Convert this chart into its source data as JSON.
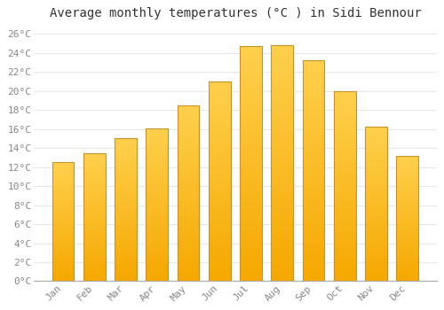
{
  "months": [
    "Jan",
    "Feb",
    "Mar",
    "Apr",
    "May",
    "Jun",
    "Jul",
    "Aug",
    "Sep",
    "Oct",
    "Nov",
    "Dec"
  ],
  "temperatures": [
    12.5,
    13.5,
    15.0,
    16.1,
    18.5,
    21.0,
    24.7,
    24.8,
    23.2,
    20.0,
    16.3,
    13.2
  ],
  "bar_color_top": "#FFD04D",
  "bar_color_bottom": "#F5A800",
  "bar_edge_color": "#C8922A",
  "title": "Average monthly temperatures (°C ) in Sidi Bennour",
  "ylim": [
    0,
    27
  ],
  "yticks": [
    0,
    2,
    4,
    6,
    8,
    10,
    12,
    14,
    16,
    18,
    20,
    22,
    24,
    26
  ],
  "ytick_labels": [
    "0°C",
    "2°C",
    "4°C",
    "6°C",
    "8°C",
    "10°C",
    "12°C",
    "14°C",
    "16°C",
    "18°C",
    "20°C",
    "22°C",
    "24°C",
    "26°C"
  ],
  "background_color": "#ffffff",
  "plot_bg_color": "#ffffff",
  "grid_color": "#e8e8e8",
  "title_fontsize": 10,
  "tick_fontsize": 8,
  "tick_color": "#888888",
  "font_family": "monospace",
  "bar_width": 0.7
}
